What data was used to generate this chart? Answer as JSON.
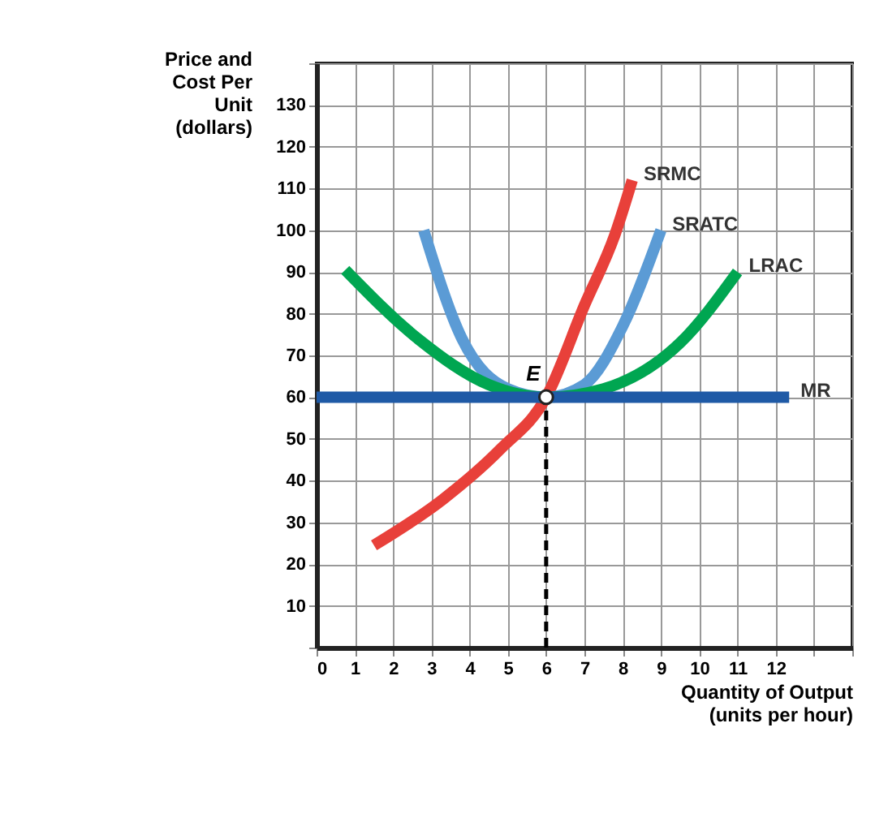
{
  "chart_data": {
    "type": "line",
    "xlabel": "Quantity of Output (units per hour)",
    "ylabel": "Price and Cost Per Unit (dollars)",
    "xlim": [
      0,
      14
    ],
    "ylim": [
      0,
      140
    ],
    "xticks": [
      0,
      1,
      2,
      3,
      4,
      5,
      6,
      7,
      8,
      9,
      10,
      11,
      12,
      {
        "value": 13,
        "label": null
      },
      {
        "value": 14,
        "label": null
      }
    ],
    "yticks": [
      {
        "value": 0,
        "label": null
      },
      10,
      20,
      30,
      40,
      50,
      60,
      70,
      80,
      90,
      100,
      110,
      120,
      130,
      {
        "value": 140,
        "label": null
      }
    ],
    "grid": true,
    "marker": "none",
    "line_style": "solid",
    "series": [
      {
        "name": "SRMC",
        "color": "#e8403a",
        "x": [
          1.5,
          3.3,
          4.8,
          6,
          7,
          7.8,
          8.25
        ],
        "values": [
          24.5,
          35.5,
          47.5,
          60,
          82,
          99,
          112
        ]
      },
      {
        "name": "SRATC",
        "color": "#5b9bd5",
        "x": [
          2.8,
          3.8,
          5,
          6,
          7,
          8,
          9
        ],
        "values": [
          100,
          74,
          62,
          60,
          63,
          77,
          100
        ]
      },
      {
        "name": "LRAC",
        "color": "#00a651",
        "x": [
          0.75,
          2.65,
          4.5,
          6,
          7.5,
          9.5,
          11
        ],
        "values": [
          90.5,
          74,
          63,
          60,
          62,
          73,
          90
        ]
      },
      {
        "name": "MR",
        "color": "#1f5aa6",
        "x": [
          0,
          12.35
        ],
        "values": [
          60,
          60
        ]
      },
      {
        "color": "#000000",
        "line_style": "dashed",
        "x": [
          6,
          6
        ],
        "values": [
          0,
          60
        ]
      }
    ],
    "annotations": [
      {
        "text": "E",
        "x": 6,
        "y": 60
      }
    ]
  }
}
